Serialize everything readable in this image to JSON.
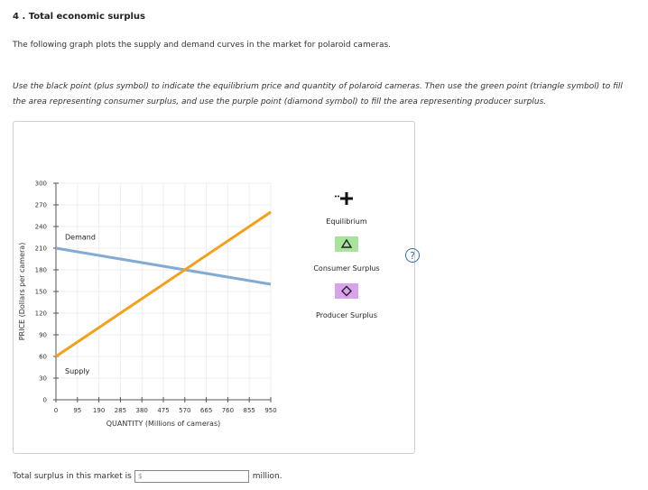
{
  "question": {
    "number_title": "4 . Total economic surplus",
    "intro": "The following graph plots the supply and demand curves in the market for polaroid cameras.",
    "instructions": "Use the black point (plus symbol) to indicate the equilibrium price and quantity of polaroid cameras. Then use the green point (triangle symbol) to fill the area representing consumer surplus, and use the purple point (diamond symbol) to fill the area representing producer surplus.",
    "help_label": "?"
  },
  "legend": {
    "equilibrium": "Equilibrium",
    "consumer_surplus": "Consumer Surplus",
    "producer_surplus": "Producer Surplus",
    "equilibrium_color": "#111111",
    "consumer_color": "#a7e39a",
    "producer_color": "#d9a3ec"
  },
  "answer": {
    "prefix": "Total surplus in this market is",
    "input_placeholder": "$",
    "suffix": "million."
  },
  "chart_data": {
    "type": "line",
    "xlabel": "QUANTITY (Millions of cameras)",
    "ylabel": "PRICE (Dollars per camera)",
    "xlim": [
      0,
      950
    ],
    "ylim": [
      0,
      300
    ],
    "x_ticks": [
      0,
      95,
      190,
      285,
      380,
      475,
      570,
      665,
      760,
      855,
      950
    ],
    "y_ticks": [
      0,
      30,
      60,
      90,
      120,
      150,
      180,
      210,
      240,
      270,
      300
    ],
    "grid": true,
    "series": [
      {
        "name": "Demand",
        "color": "#82aad2",
        "points": [
          [
            0,
            210
          ],
          [
            950,
            160
          ]
        ]
      },
      {
        "name": "Supply",
        "color": "#f6a01a",
        "points": [
          [
            0,
            60
          ],
          [
            950,
            260
          ]
        ]
      }
    ]
  }
}
